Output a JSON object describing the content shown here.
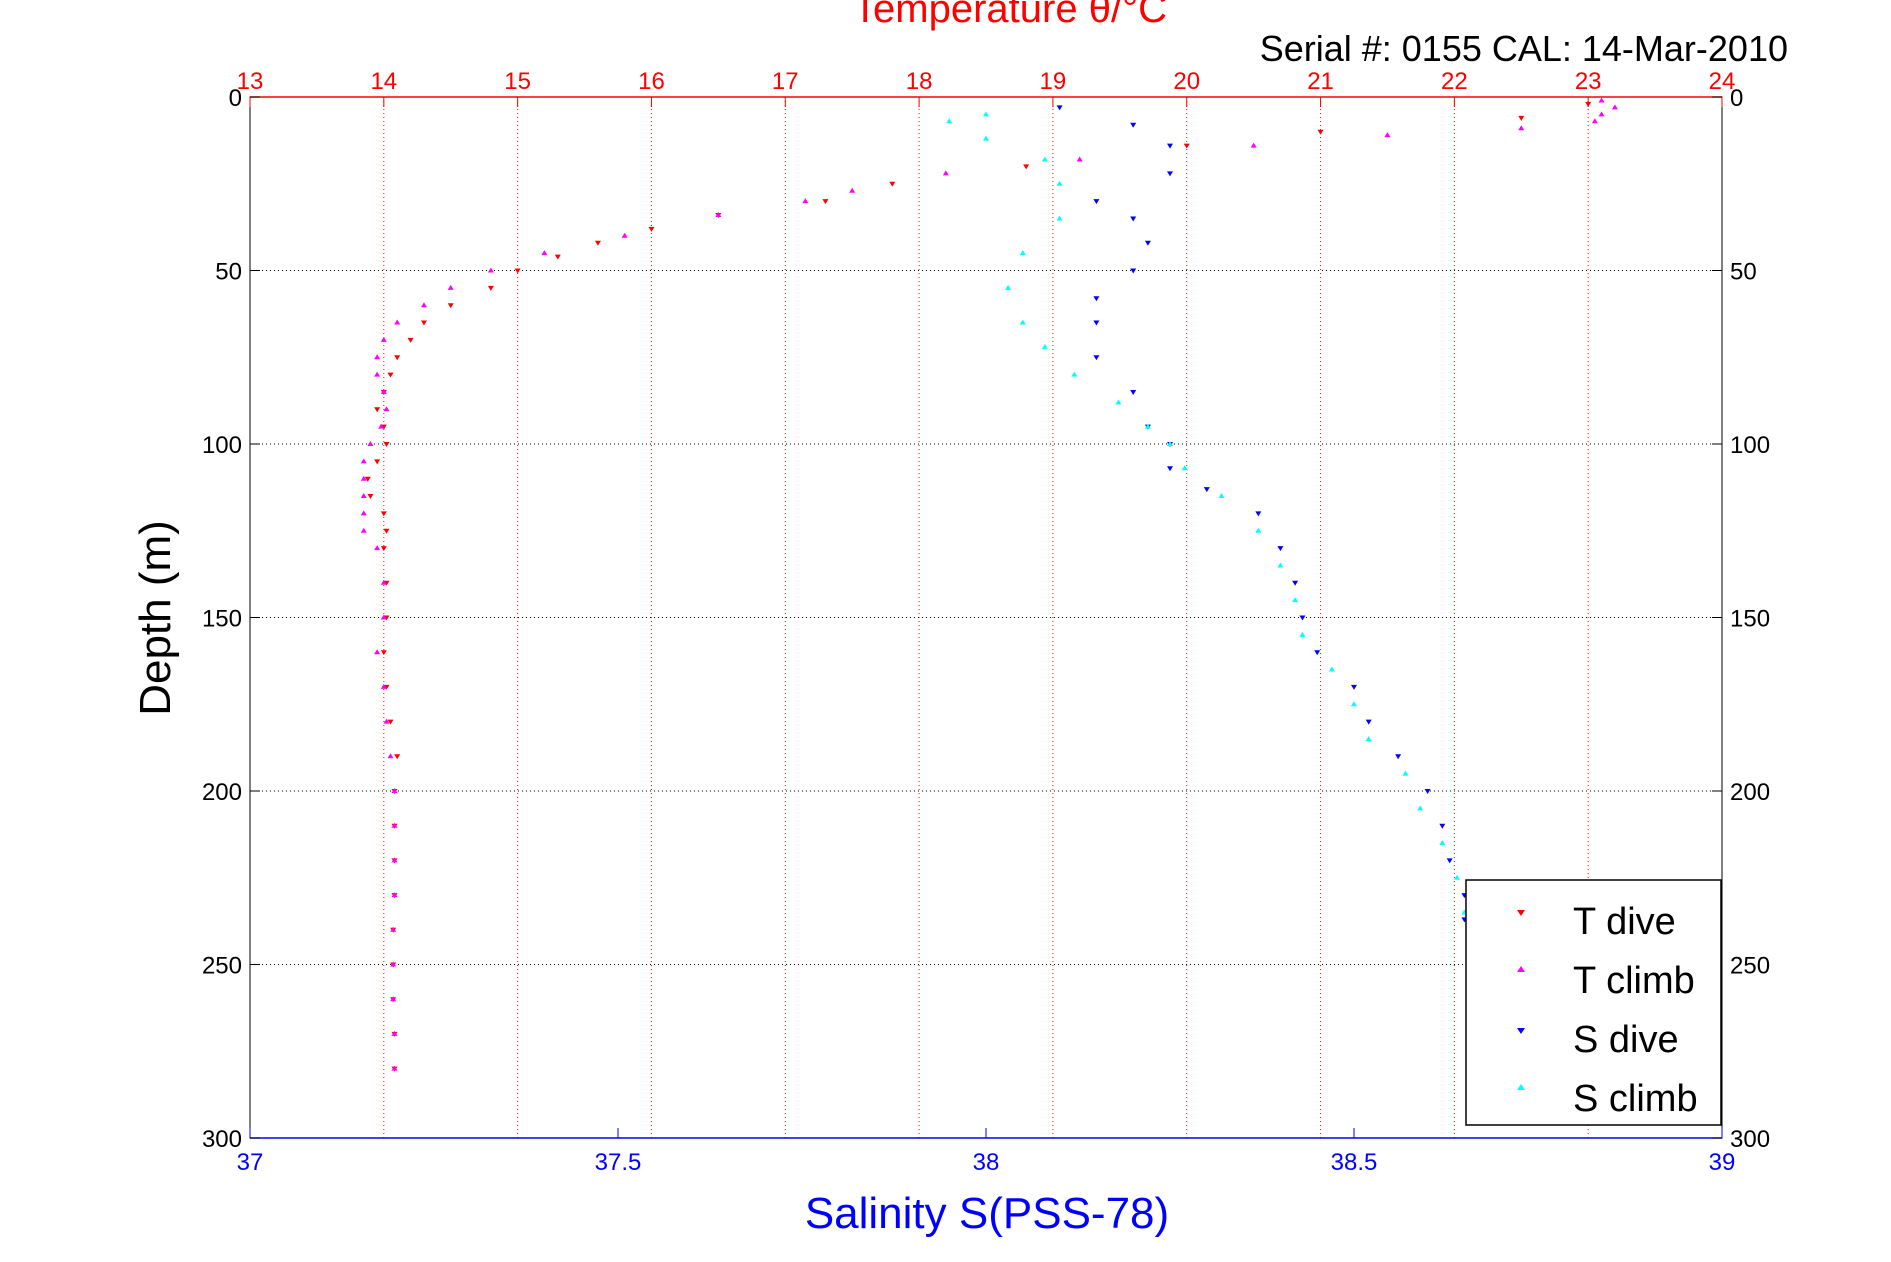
{
  "chart_data": {
    "type": "scatter",
    "title": "Temperature θ/°C",
    "subtitle": "Serial #: 0155  CAL: 14-Mar-2010",
    "ylabel": "Depth (m)",
    "xlabel": "Salinity S(PSS-78)",
    "top_axis": {
      "label": "Temperature θ/°C",
      "range": [
        13,
        24
      ],
      "ticks": [
        "13",
        "14",
        "15",
        "16",
        "17",
        "18",
        "19",
        "20",
        "21",
        "22",
        "23",
        "24"
      ]
    },
    "bottom_axis": {
      "label": "Salinity S(PSS-78)",
      "range": [
        37,
        39
      ],
      "ticks": [
        "37",
        "37.5",
        "38",
        "38.5",
        "39"
      ],
      "tick_values": [
        37,
        37.5,
        38,
        38.5,
        39
      ]
    },
    "y_axis": {
      "range": [
        0,
        300
      ],
      "reversed": true,
      "ticks": [
        "0",
        "50",
        "100",
        "150",
        "200",
        "250",
        "300"
      ],
      "tick_values": [
        0,
        50,
        100,
        150,
        200,
        250,
        300
      ]
    },
    "grid": true,
    "legend_position": "bottom-right",
    "colors": {
      "t_dive": "#ff0000",
      "t_climb": "#ff00ff",
      "s_dive": "#0000ff",
      "s_climb": "#00ffff",
      "temp_axis": "#ff0000",
      "sal_axis": "#0000ff"
    },
    "series": [
      {
        "name": "T dive",
        "axis": "temperature",
        "color": "#ff0000",
        "marker": "triangle-down",
        "points": [
          [
            23.0,
            2
          ],
          [
            22.5,
            6
          ],
          [
            21.0,
            10
          ],
          [
            20.0,
            14
          ],
          [
            18.8,
            20
          ],
          [
            17.8,
            25
          ],
          [
            17.3,
            30
          ],
          [
            16.5,
            34
          ],
          [
            16.0,
            38
          ],
          [
            15.6,
            42
          ],
          [
            15.3,
            46
          ],
          [
            15.0,
            50
          ],
          [
            14.8,
            55
          ],
          [
            14.5,
            60
          ],
          [
            14.3,
            65
          ],
          [
            14.2,
            70
          ],
          [
            14.1,
            75
          ],
          [
            14.05,
            80
          ],
          [
            14.0,
            85
          ],
          [
            13.95,
            90
          ],
          [
            14.0,
            95
          ],
          [
            14.02,
            100
          ],
          [
            13.95,
            105
          ],
          [
            13.88,
            110
          ],
          [
            13.9,
            115
          ],
          [
            14.0,
            120
          ],
          [
            14.02,
            125
          ],
          [
            14.0,
            130
          ],
          [
            14.02,
            140
          ],
          [
            14.02,
            150
          ],
          [
            14.0,
            160
          ],
          [
            14.02,
            170
          ],
          [
            14.05,
            180
          ],
          [
            14.1,
            190
          ],
          [
            14.08,
            200
          ],
          [
            14.08,
            210
          ],
          [
            14.08,
            220
          ],
          [
            14.08,
            230
          ],
          [
            14.07,
            240
          ],
          [
            14.07,
            250
          ],
          [
            14.07,
            260
          ],
          [
            14.08,
            270
          ],
          [
            14.08,
            280
          ]
        ]
      },
      {
        "name": "T climb",
        "axis": "temperature",
        "color": "#ff00ff",
        "marker": "triangle-up",
        "points": [
          [
            23.1,
            1
          ],
          [
            23.2,
            3
          ],
          [
            23.1,
            5
          ],
          [
            23.05,
            7
          ],
          [
            22.5,
            9
          ],
          [
            21.5,
            11
          ],
          [
            20.5,
            14
          ],
          [
            19.2,
            18
          ],
          [
            18.2,
            22
          ],
          [
            17.5,
            27
          ],
          [
            17.15,
            30
          ],
          [
            16.5,
            34
          ],
          [
            15.8,
            40
          ],
          [
            15.2,
            45
          ],
          [
            14.8,
            50
          ],
          [
            14.5,
            55
          ],
          [
            14.3,
            60
          ],
          [
            14.1,
            65
          ],
          [
            14.0,
            70
          ],
          [
            13.95,
            75
          ],
          [
            13.95,
            80
          ],
          [
            14.0,
            85
          ],
          [
            14.02,
            90
          ],
          [
            13.98,
            95
          ],
          [
            13.9,
            100
          ],
          [
            13.85,
            105
          ],
          [
            13.85,
            110
          ],
          [
            13.85,
            115
          ],
          [
            13.85,
            120
          ],
          [
            13.85,
            125
          ],
          [
            13.95,
            130
          ],
          [
            14.0,
            140
          ],
          [
            14.0,
            150
          ],
          [
            13.95,
            160
          ],
          [
            14.0,
            170
          ],
          [
            14.02,
            180
          ],
          [
            14.05,
            190
          ],
          [
            14.08,
            200
          ],
          [
            14.08,
            210
          ],
          [
            14.08,
            220
          ],
          [
            14.08,
            230
          ],
          [
            14.07,
            240
          ],
          [
            14.07,
            250
          ],
          [
            14.07,
            260
          ],
          [
            14.08,
            270
          ],
          [
            14.08,
            280
          ]
        ]
      },
      {
        "name": "S dive",
        "axis": "salinity",
        "color": "#0000ff",
        "marker": "triangle-down",
        "points": [
          [
            38.1,
            3
          ],
          [
            38.2,
            8
          ],
          [
            38.25,
            14
          ],
          [
            38.25,
            22
          ],
          [
            38.15,
            30
          ],
          [
            38.2,
            35
          ],
          [
            38.22,
            42
          ],
          [
            38.2,
            50
          ],
          [
            38.15,
            58
          ],
          [
            38.15,
            65
          ],
          [
            38.15,
            75
          ],
          [
            38.2,
            85
          ],
          [
            38.22,
            95
          ],
          [
            38.25,
            100
          ],
          [
            38.25,
            107
          ],
          [
            38.3,
            113
          ],
          [
            38.37,
            120
          ],
          [
            38.4,
            130
          ],
          [
            38.42,
            140
          ],
          [
            38.43,
            150
          ],
          [
            38.45,
            160
          ],
          [
            38.5,
            170
          ],
          [
            38.52,
            180
          ],
          [
            38.56,
            190
          ],
          [
            38.6,
            200
          ],
          [
            38.62,
            210
          ],
          [
            38.63,
            220
          ],
          [
            38.65,
            230
          ],
          [
            38.65,
            237
          ]
        ]
      },
      {
        "name": "S climb",
        "axis": "salinity",
        "color": "#00ffff",
        "marker": "triangle-up",
        "points": [
          [
            38.0,
            5
          ],
          [
            37.95,
            7
          ],
          [
            38.0,
            12
          ],
          [
            38.08,
            18
          ],
          [
            38.1,
            25
          ],
          [
            38.1,
            35
          ],
          [
            38.05,
            45
          ],
          [
            38.03,
            55
          ],
          [
            38.05,
            65
          ],
          [
            38.08,
            72
          ],
          [
            38.12,
            80
          ],
          [
            38.18,
            88
          ],
          [
            38.22,
            95
          ],
          [
            38.25,
            100
          ],
          [
            38.27,
            107
          ],
          [
            38.32,
            115
          ],
          [
            38.37,
            125
          ],
          [
            38.4,
            135
          ],
          [
            38.42,
            145
          ],
          [
            38.43,
            155
          ],
          [
            38.47,
            165
          ],
          [
            38.5,
            175
          ],
          [
            38.52,
            185
          ],
          [
            38.57,
            195
          ],
          [
            38.59,
            205
          ],
          [
            38.62,
            215
          ],
          [
            38.64,
            225
          ],
          [
            38.65,
            235
          ]
        ]
      }
    ]
  }
}
